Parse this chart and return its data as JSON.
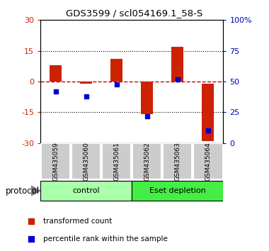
{
  "title": "GDS3599 / scl054169.1_58-S",
  "samples": [
    "GSM435059",
    "GSM435060",
    "GSM435061",
    "GSM435062",
    "GSM435063",
    "GSM435064"
  ],
  "red_bar_bottom": [
    0,
    -1,
    0,
    0,
    0,
    -1
  ],
  "red_bar_top": [
    8,
    0,
    11,
    -16,
    17,
    -29
  ],
  "blue_values": [
    42,
    38,
    48,
    22,
    52,
    10
  ],
  "ylim": [
    -30,
    30
  ],
  "yticks_left": [
    -30,
    -15,
    0,
    15,
    30
  ],
  "ytick_labels_left": [
    "-30",
    "-15",
    "0",
    "15",
    "30"
  ],
  "right_yticks": [
    0,
    25,
    50,
    75,
    100
  ],
  "right_ytick_labels": [
    "0",
    "25",
    "50",
    "75",
    "100%"
  ],
  "bar_color": "#cc2200",
  "blue_color": "#0000cc",
  "dashed_line_color": "#cc0000",
  "group1_label": "control",
  "group2_label": "Eset depletion",
  "group1_indices": [
    0,
    1,
    2
  ],
  "group2_indices": [
    3,
    4,
    5
  ],
  "group1_color": "#aaffaa",
  "group2_color": "#44ee44",
  "protocol_label": "protocol",
  "legend_red": "transformed count",
  "legend_blue": "percentile rank within the sample",
  "background_color": "#ffffff",
  "sample_box_color": "#cccccc",
  "bar_width": 0.4
}
